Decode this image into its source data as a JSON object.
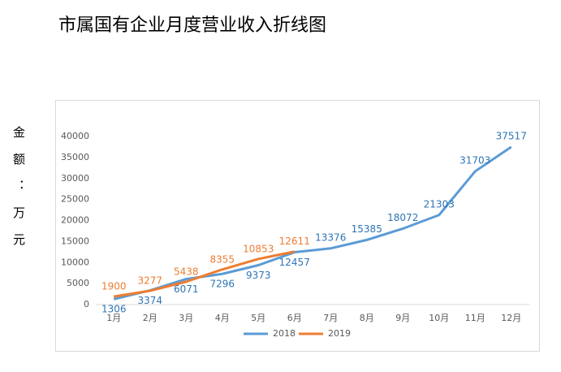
{
  "chart_data": {
    "type": "line",
    "title": "市属国有企业月度营业收入折线图",
    "y_label": "金额：万元",
    "categories": [
      "1月",
      "2月",
      "3月",
      "4月",
      "5月",
      "6月",
      "7月",
      "8月",
      "9月",
      "10月",
      "11月",
      "12月"
    ],
    "series": [
      {
        "name": "2018",
        "color": "#5b9bd5",
        "values": [
          1306,
          3374,
          6071,
          7296,
          9373,
          12457,
          13376,
          15385,
          18072,
          21303,
          31703,
          37517
        ]
      },
      {
        "name": "2019",
        "color": "#ed7d31",
        "values": [
          1900,
          3277,
          5438,
          8355,
          10853,
          12611,
          null,
          null,
          null,
          null,
          null,
          null
        ]
      }
    ],
    "ylim": [
      0,
      40000
    ],
    "yticks": [
      0,
      5000,
      10000,
      15000,
      20000,
      25000,
      30000,
      35000,
      40000
    ],
    "grid": false,
    "legend": "bottom"
  }
}
